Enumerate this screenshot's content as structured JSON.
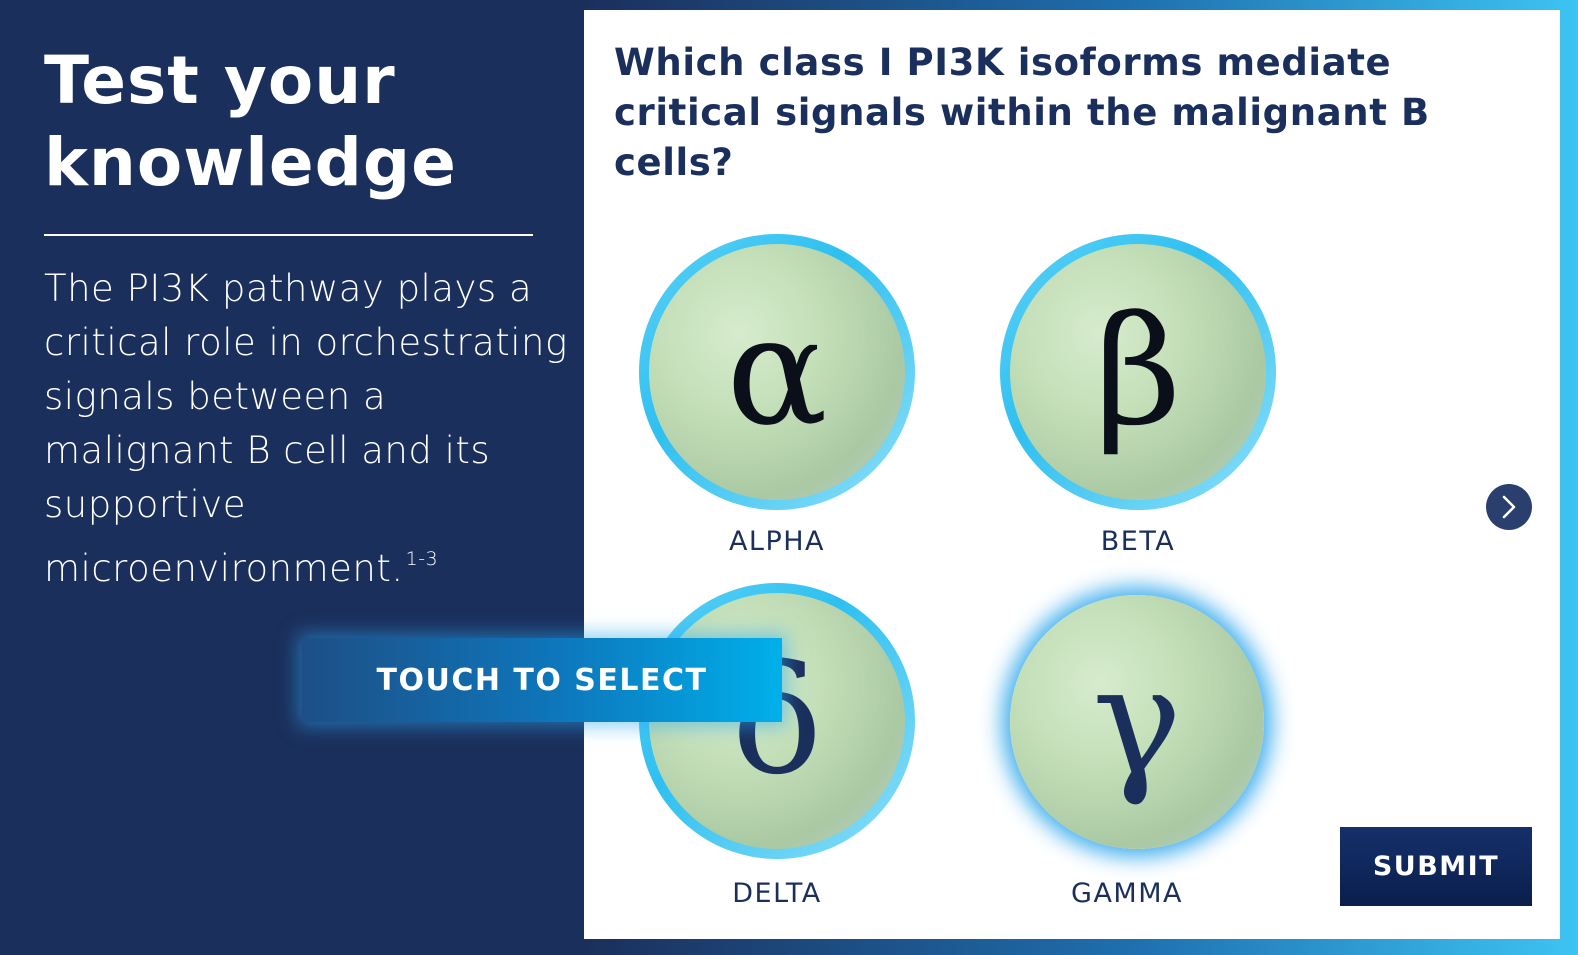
{
  "left": {
    "heading_line1": "Test your",
    "heading_line2": "knowledge",
    "intro_text": "The PI3K pathway plays a critical role in orchestrating signals between a malignant B cell and its supportive microenvironment.",
    "intro_ref": "1-3"
  },
  "quiz": {
    "question": "Which class I PI3K isoforms mediate critical signals within the malignant B cells?",
    "options": [
      {
        "glyph": "α",
        "label": "ALPHA"
      },
      {
        "glyph": "β",
        "label": "BETA"
      },
      {
        "glyph": "δ",
        "label": "DELTA"
      },
      {
        "glyph": "γ",
        "label": "GAMMA"
      }
    ],
    "selected_option": "GAMMA",
    "submit_label": "SUBMIT",
    "next_icon": "chevron-right-icon"
  },
  "overlay": {
    "touch_label": "TOUCH TO SELECT"
  },
  "colors": {
    "navy": "#1b2f5c",
    "accent_blue": "#2fc0f0",
    "white": "#ffffff"
  }
}
